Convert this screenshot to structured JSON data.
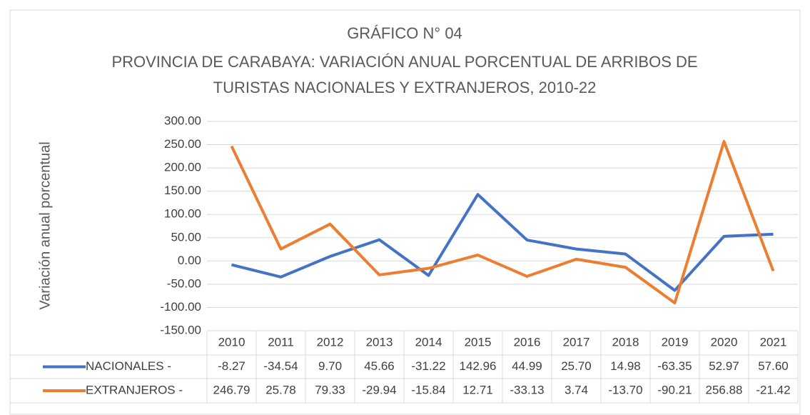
{
  "chart_data": {
    "type": "line",
    "title": "GRÁFICO N° 04",
    "subtitle": [
      "PROVINCIA DE CARABAYA: VARIACIÓN ANUAL PORCENTUAL DE ARRIBOS DE",
      "TURISTAS NACIONALES Y EXTRANJEROS, 2010-22"
    ],
    "y_label": "Variación anual porcentual",
    "categories": [
      "2010",
      "2011",
      "2012",
      "2013",
      "2014",
      "2015",
      "2016",
      "2017",
      "2018",
      "2019",
      "2020",
      "2021"
    ],
    "series": [
      {
        "name": "NACIONALES -",
        "color": "#4472c4",
        "values": [
          -8.27,
          -34.54,
          9.7,
          45.66,
          -31.22,
          142.96,
          44.99,
          25.7,
          14.98,
          -63.35,
          52.97,
          57.6
        ],
        "value_labels": [
          "-8.27",
          "-34.54",
          "9.70",
          "45.66",
          "-31.22",
          "142.96",
          "44.99",
          "25.70",
          "14.98",
          "-63.35",
          "52.97",
          "57.60"
        ]
      },
      {
        "name": "EXTRANJEROS -",
        "color": "#ed7d31",
        "values": [
          246.79,
          25.78,
          79.33,
          -29.94,
          -15.84,
          12.71,
          -33.13,
          3.74,
          -13.7,
          -90.21,
          256.88,
          -21.42
        ],
        "value_labels": [
          "246.79",
          "25.78",
          "79.33",
          "-29.94",
          "-15.84",
          "12.71",
          "-33.13",
          "3.74",
          "-13.70",
          "-90.21",
          "256.88",
          "-21.42"
        ]
      }
    ],
    "ylim": [
      -150,
      300
    ],
    "yticks": [
      {
        "value": -150,
        "label": "-150.00"
      },
      {
        "value": -100,
        "label": "-100.00"
      },
      {
        "value": -50,
        "label": "-50.00"
      },
      {
        "value": 0,
        "label": "0.00"
      },
      {
        "value": 50,
        "label": "50.00"
      },
      {
        "value": 100,
        "label": "100.00"
      },
      {
        "value": 150,
        "label": "150.00"
      },
      {
        "value": 200,
        "label": "200.00"
      },
      {
        "value": 250,
        "label": "250.00"
      },
      {
        "value": 300,
        "label": "300.00"
      }
    ],
    "grid": true
  }
}
